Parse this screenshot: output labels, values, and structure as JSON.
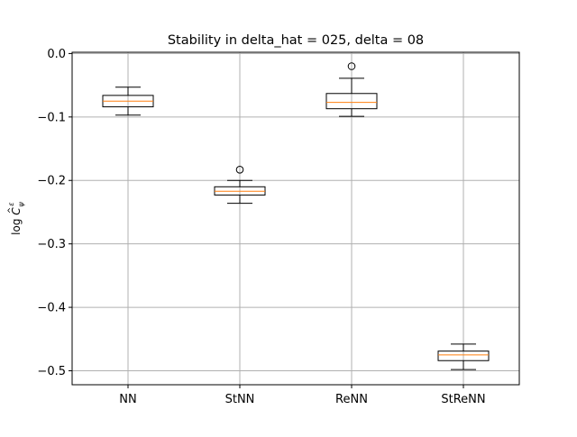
{
  "chart_data": {
    "type": "box",
    "title": "Stability in delta_hat = 025, delta = 08",
    "ylabel": {
      "prefix": "log ",
      "symbol": "C",
      "hat": "^",
      "superscript": "ε",
      "subscript": "ψ"
    },
    "xlabel": "",
    "categories": [
      "NN",
      "StNN",
      "ReNN",
      "StReNN"
    ],
    "ylim": [
      -0.522,
      0.002
    ],
    "yticks": [
      0.0,
      -0.1,
      -0.2,
      -0.3,
      -0.4,
      -0.5
    ],
    "ytick_labels": [
      "0.0",
      "−0.1",
      "−0.2",
      "−0.3",
      "−0.4",
      "−0.5"
    ],
    "grid": true,
    "boxes": [
      {
        "category": "NN",
        "whisker_low": -0.097,
        "q1": -0.084,
        "median": -0.075,
        "q3": -0.066,
        "whisker_high": -0.053,
        "outliers": []
      },
      {
        "category": "StNN",
        "whisker_low": -0.236,
        "q1": -0.223,
        "median": -0.217,
        "q3": -0.21,
        "whisker_high": -0.2,
        "outliers": [
          -0.183
        ]
      },
      {
        "category": "ReNN",
        "whisker_low": -0.099,
        "q1": -0.087,
        "median": -0.077,
        "q3": -0.063,
        "whisker_high": -0.039,
        "outliers": [
          -0.02
        ]
      },
      {
        "category": "StReNN",
        "whisker_low": -0.498,
        "q1": -0.484,
        "median": -0.475,
        "q3": -0.469,
        "whisker_high": -0.458,
        "outliers": []
      }
    ],
    "colors": {
      "box": "#000000",
      "median": "#ff7f0e",
      "grid": "#b0b0b0",
      "axes": "#000000"
    }
  }
}
